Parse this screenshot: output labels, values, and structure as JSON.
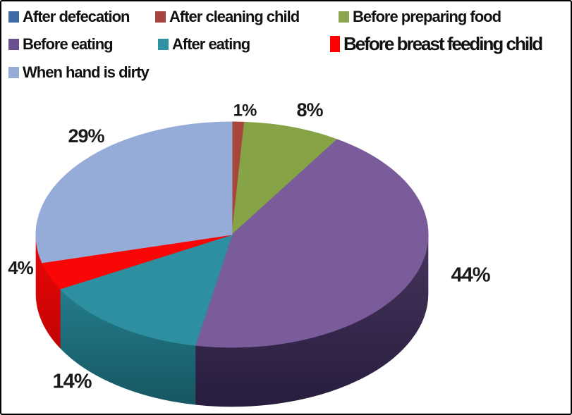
{
  "chart_data": {
    "type": "pie",
    "style": "3d-pie",
    "title": "",
    "legend_position": "top-left",
    "total_pct": 100,
    "slices": [
      {
        "label": "After defecation",
        "value_pct": 0,
        "pct_label": "",
        "color": "#3E6BA5"
      },
      {
        "label": "After cleaning child",
        "value_pct": 1,
        "pct_label": "1%",
        "color": "#A8453C"
      },
      {
        "label": "Before preparing food",
        "value_pct": 8,
        "pct_label": "8%",
        "color": "#86A345"
      },
      {
        "label": "Before eating",
        "value_pct": 44,
        "pct_label": "44%",
        "color": "#7A5C9B",
        "side_top": "#46345C",
        "side_bottom": "#281D3E"
      },
      {
        "label": "After eating",
        "value_pct": 14,
        "pct_label": "14%",
        "color": "#2D8F9F",
        "side_top": "#247C8B",
        "side_bottom": "#155762"
      },
      {
        "label": "Before breast feeding child",
        "value_pct": 4,
        "pct_label": "4%",
        "color": "#F90606",
        "side_top": "#EE0707",
        "side_bottom": "#C10303"
      },
      {
        "label": "When hand is dirty",
        "value_pct": 29,
        "pct_label": "29%",
        "color": "#96ACD8"
      }
    ],
    "label_color": "#1a1a1a"
  },
  "legend": {
    "items": [
      {
        "label": "After defecation",
        "color": "#3E6BA5",
        "emphasis": false
      },
      {
        "label": "After cleaning child",
        "color": "#A5433C",
        "emphasis": false
      },
      {
        "label": "Before preparing food",
        "color": "#89A54D",
        "emphasis": false
      },
      {
        "label": "Before eating",
        "color": "#6B5090",
        "emphasis": false
      },
      {
        "label": "After eating",
        "color": "#2E91A4",
        "emphasis": false
      },
      {
        "label": "Before breast feeding child",
        "color": "#FE0000",
        "emphasis": true
      },
      {
        "label": "When hand is dirty",
        "color": "#96ACD8",
        "emphasis": false
      }
    ]
  }
}
